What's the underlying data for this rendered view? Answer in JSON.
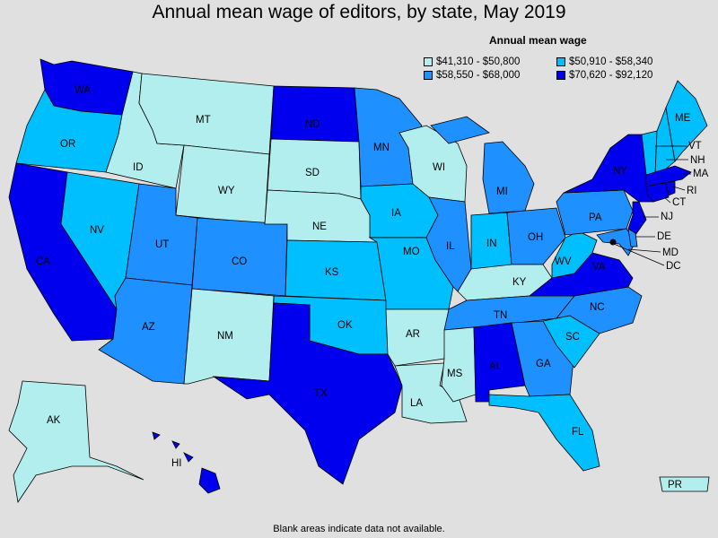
{
  "title": "Annual mean wage of editors, by state, May 2019",
  "legend": {
    "title": "Annual mean wage",
    "items": [
      {
        "label": "$41,310 - $50,800",
        "color": "#b3eeee"
      },
      {
        "label": "$50,910 - $58,340",
        "color": "#00bfff"
      },
      {
        "label": "$58,550 - $68,000",
        "color": "#1e90ff"
      },
      {
        "label": "$70,620 - $92,120",
        "color": "#0000ee"
      }
    ]
  },
  "footnote": "Blank areas indicate data not available.",
  "states": {
    "WA": "WA",
    "OR": "OR",
    "CA": "CA",
    "ID": "ID",
    "NV": "NV",
    "MT": "MT",
    "WY": "WY",
    "UT": "UT",
    "AZ": "AZ",
    "CO": "CO",
    "NM": "NM",
    "ND": "ND",
    "SD": "SD",
    "NE": "NE",
    "KS": "KS",
    "OK": "OK",
    "TX": "TX",
    "MN": "MN",
    "IA": "IA",
    "MO": "MO",
    "AR": "AR",
    "LA": "LA",
    "WI": "WI",
    "IL": "IL",
    "MI": "MI",
    "IN": "IN",
    "OH": "OH",
    "KY": "KY",
    "TN": "TN",
    "MS": "MS",
    "AL": "AL",
    "GA": "GA",
    "FL": "FL",
    "SC": "SC",
    "NC": "NC",
    "VA": "VA",
    "WV": "WV",
    "PA": "PA",
    "NY": "NY",
    "ME": "ME",
    "VT": "VT",
    "NH": "NH",
    "MA": "MA",
    "RI": "RI",
    "CT": "CT",
    "NJ": "NJ",
    "DE": "DE",
    "MD": "MD",
    "DC": "DC",
    "AK": "AK",
    "HI": "HI",
    "PR": "PR"
  }
}
